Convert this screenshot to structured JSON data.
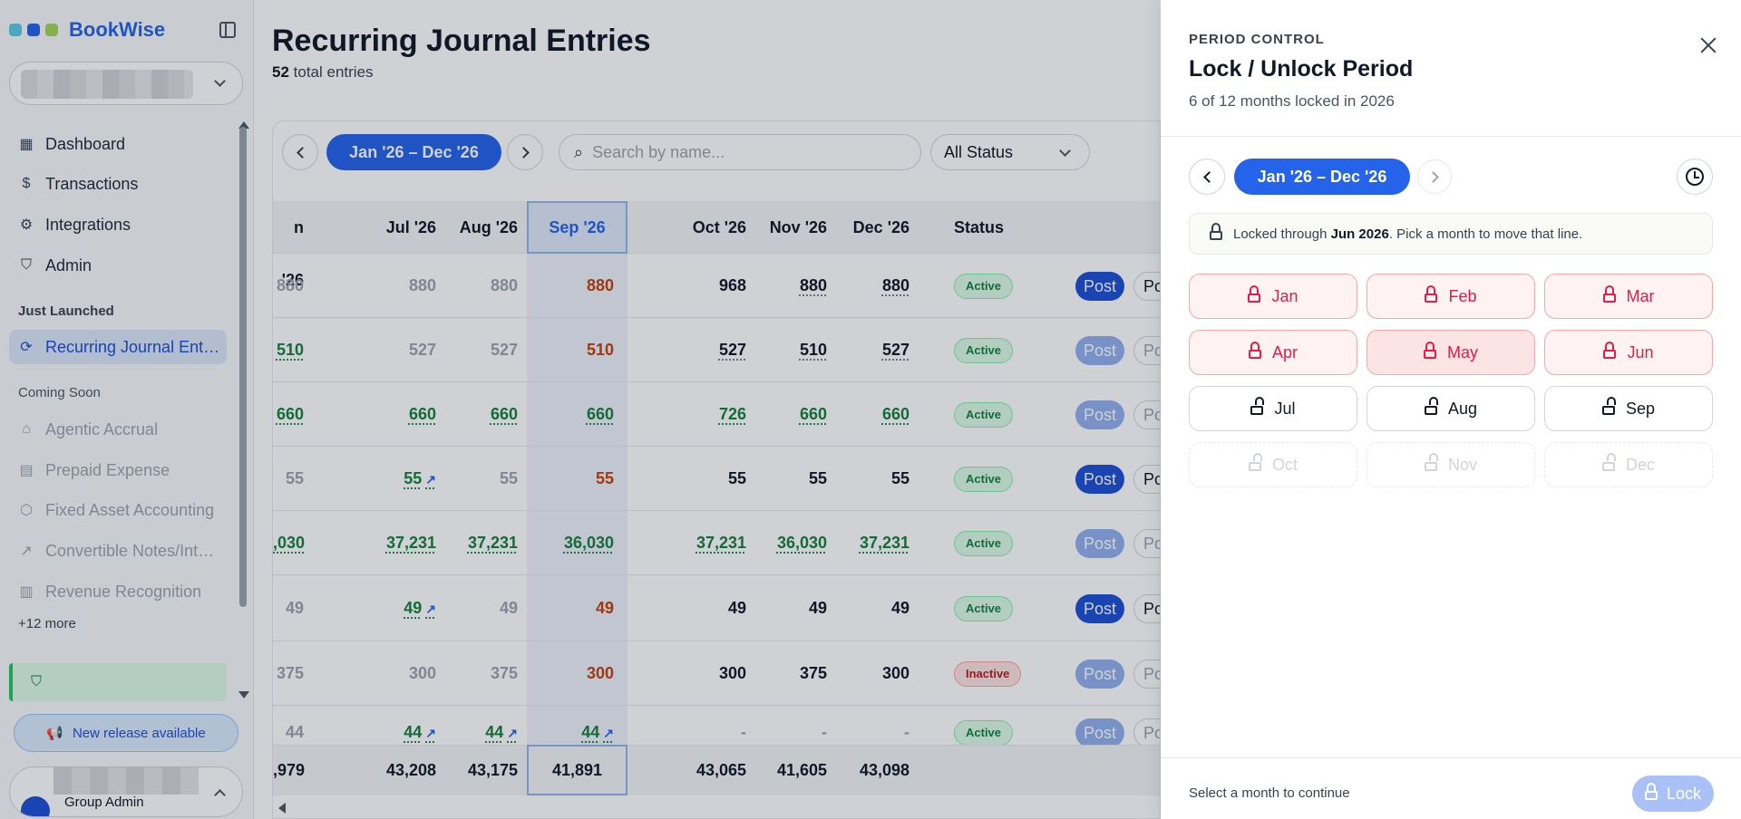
{
  "sidebar": {
    "brand": "BookWise",
    "brand_colors": [
      "#5ec8e5",
      "#2563eb",
      "#a3d65c"
    ],
    "nav": [
      {
        "label": "Dashboard",
        "icon": "dashboard-icon"
      },
      {
        "label": "Transactions",
        "icon": "dollar-icon"
      },
      {
        "label": "Integrations",
        "icon": "gear-icon"
      },
      {
        "label": "Admin",
        "icon": "shield-icon"
      }
    ],
    "section_launched": "Just Launched",
    "active_item": "Recurring Journal Ent…",
    "section_soon": "Coming Soon",
    "soon_items": [
      {
        "label": "Agentic Accrual",
        "icon": "robot-icon"
      },
      {
        "label": "Prepaid Expense",
        "icon": "receipt-icon"
      },
      {
        "label": "Fixed Asset Accounting",
        "icon": "cube-icon"
      },
      {
        "label": "Convertible Notes/Int…",
        "icon": "trend-icon"
      },
      {
        "label": "Revenue Recognition",
        "icon": "bar-chart-icon"
      }
    ],
    "more": "+12 more",
    "release": "New release available",
    "user_role": "Group Admin"
  },
  "main": {
    "title": "Recurring Journal Entries",
    "count": "52",
    "count_suffix": "total entries",
    "range": "Jan '26 – Dec '26",
    "search_placeholder": "Search by name...",
    "status_filter": "All Status",
    "columns": [
      "n '26",
      "Jul '26",
      "Aug '26",
      "Sep '26",
      "Oct '26",
      "Nov '26",
      "Dec '26",
      "Status"
    ],
    "rows": [
      {
        "cells": [
          "880",
          "880",
          "880",
          "880",
          "968",
          "880",
          "880"
        ],
        "status": "Active",
        "post": "Post",
        "post2": "Po"
      },
      {
        "cells": [
          "510",
          "527",
          "527",
          "510",
          "527",
          "510",
          "527"
        ],
        "status": "Active",
        "post": "Post",
        "post2": "Po"
      },
      {
        "cells": [
          "660",
          "660",
          "660",
          "660",
          "726",
          "660",
          "660"
        ],
        "status": "Active",
        "post": "Post",
        "post2": "Po"
      },
      {
        "cells": [
          "55",
          "55",
          "55",
          "55",
          "55",
          "55",
          "55"
        ],
        "status": "Active",
        "post": "Post",
        "post2": "Po"
      },
      {
        "cells": [
          ",030",
          "37,231",
          "37,231",
          "36,030",
          "37,231",
          "36,030",
          "37,231"
        ],
        "status": "Active",
        "post": "Post",
        "post2": "Po"
      },
      {
        "cells": [
          "49",
          "49",
          "49",
          "49",
          "49",
          "49",
          "49"
        ],
        "status": "Active",
        "post": "Post",
        "post2": "Po"
      },
      {
        "cells": [
          "375",
          "300",
          "375",
          "300",
          "300",
          "375",
          "300"
        ],
        "status": "Inactive",
        "post": "Post",
        "post2": "Po"
      },
      {
        "cells": [
          "44",
          "44",
          "44",
          "44",
          "-",
          "-",
          "-"
        ],
        "status": "Active",
        "post": "Post",
        "post2": "Po"
      }
    ],
    "totals": [
      ",979",
      "43,208",
      "43,175",
      "41,891",
      "43,065",
      "41,605",
      "43,098"
    ]
  },
  "drawer": {
    "kicker": "PERIOD CONTROL",
    "title": "Lock / Unlock Period",
    "subtitle": "6 of 12 months locked in 2026",
    "range": "Jan '26 – Dec '26",
    "info_prefix": "Locked through",
    "info_bold": "Jun 2026",
    "info_suffix": ". Pick a month to move that line.",
    "months": [
      {
        "label": "Jan",
        "state": "locked"
      },
      {
        "label": "Feb",
        "state": "locked"
      },
      {
        "label": "Mar",
        "state": "locked"
      },
      {
        "label": "Apr",
        "state": "locked"
      },
      {
        "label": "May",
        "state": "locked"
      },
      {
        "label": "Jun",
        "state": "locked"
      },
      {
        "label": "Jul",
        "state": "open"
      },
      {
        "label": "Aug",
        "state": "open"
      },
      {
        "label": "Sep",
        "state": "open"
      },
      {
        "label": "Oct",
        "state": "future"
      },
      {
        "label": "Nov",
        "state": "future"
      },
      {
        "label": "Dec",
        "state": "future"
      }
    ],
    "footer_text": "Select a month to continue",
    "lock_label": "Lock"
  }
}
